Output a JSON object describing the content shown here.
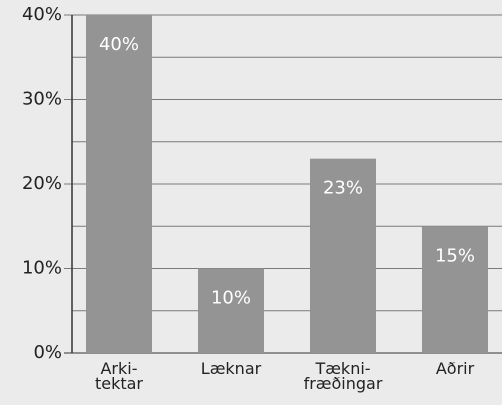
{
  "chart_data": {
    "type": "bar",
    "categories": [
      "Arki-\ntektar",
      "Læknar",
      "Tækni-\nfræðingar",
      "Aðrir"
    ],
    "values": [
      40,
      10,
      23,
      15
    ],
    "value_labels": [
      "40%",
      "10%",
      "23%",
      "15%"
    ],
    "color": "#949494",
    "ylim": [
      0,
      40
    ],
    "yticks": [
      {
        "value": 0,
        "label": "0%"
      },
      {
        "value": 10,
        "label": "10%"
      },
      {
        "value": 20,
        "label": "20%"
      },
      {
        "value": 30,
        "label": "30%"
      },
      {
        "value": 40,
        "label": "40%"
      }
    ],
    "minor_yticks": [
      5,
      15,
      25,
      35
    ],
    "grid": true
  }
}
